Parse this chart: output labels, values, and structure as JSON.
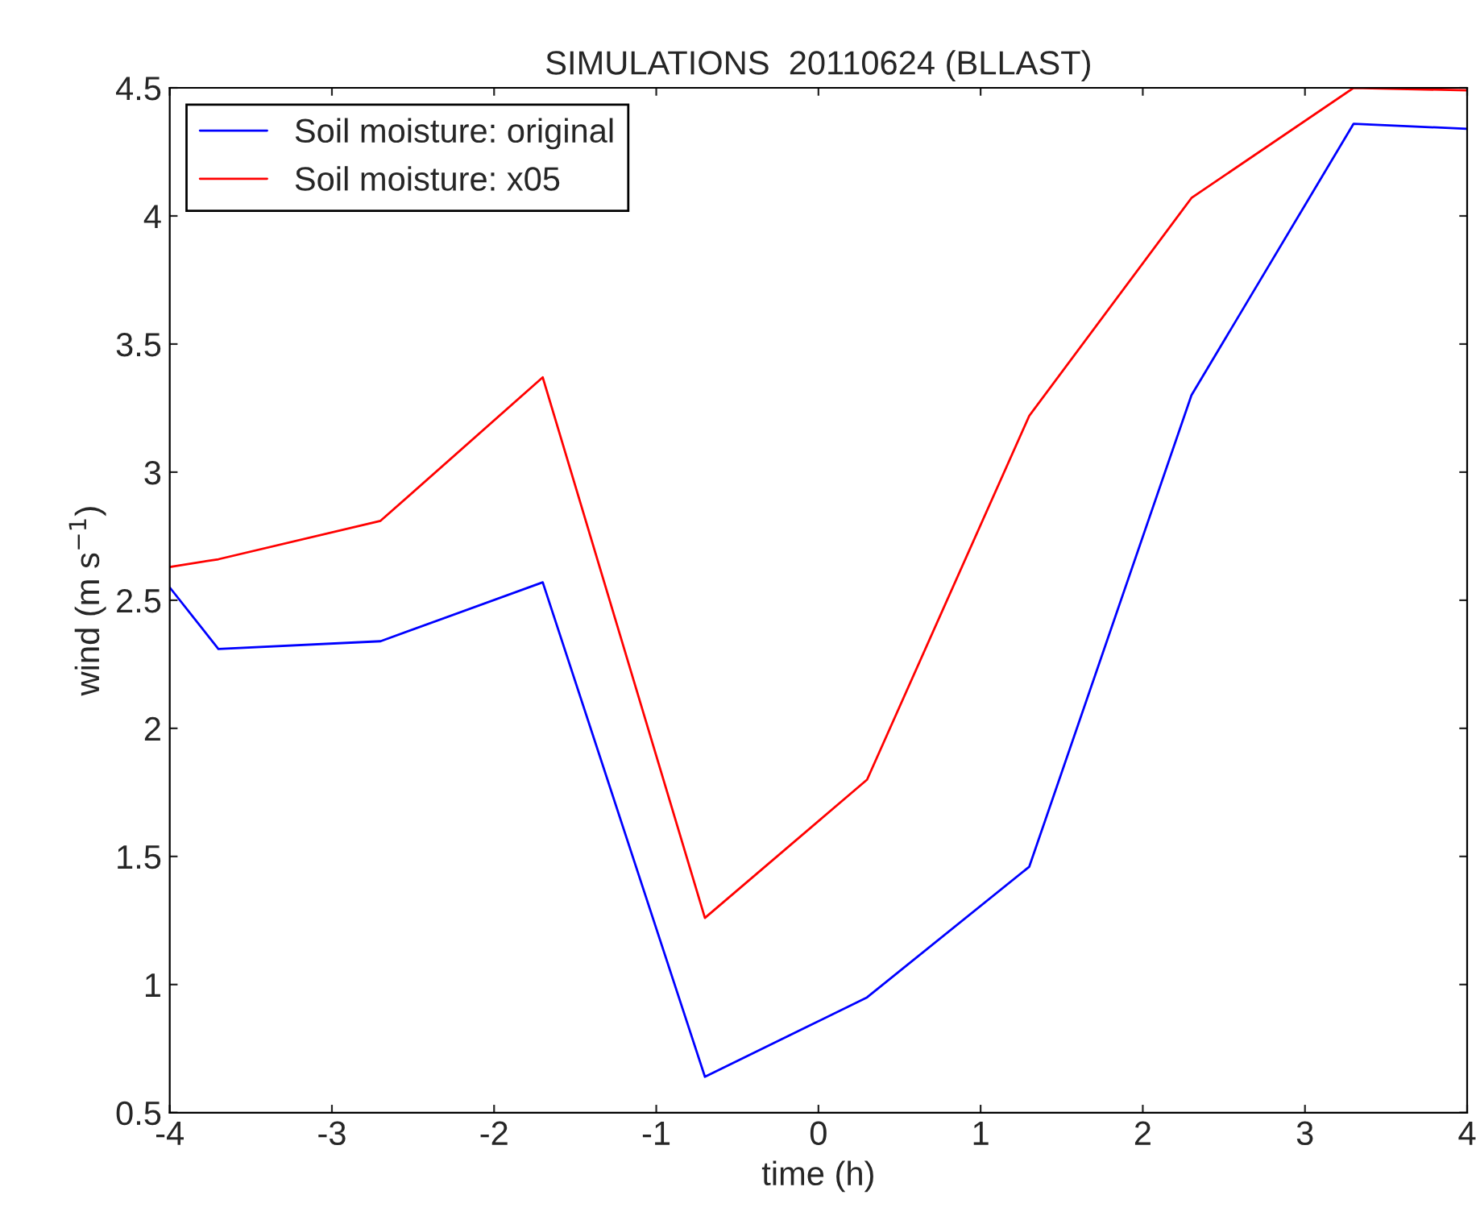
{
  "chart_data": {
    "type": "line",
    "title": "SIMULATIONS  20110624 (BLLAST)",
    "xlabel": "time (h)",
    "ylabel": "wind (m s$^{−1}$)",
    "x": [
      -4,
      -3.7,
      -2.7,
      -1.7,
      -0.7,
      0.3,
      1.3,
      2.3,
      3.3,
      4
    ],
    "series": [
      {
        "name": "Soil moisture: original",
        "color": "#0000ff",
        "values": [
          2.55,
          2.31,
          2.34,
          2.57,
          0.64,
          0.95,
          1.46,
          3.3,
          4.36,
          4.34
        ]
      },
      {
        "name": "Soil moisture: x05",
        "color": "#ff0000",
        "values": [
          2.63,
          2.66,
          2.81,
          3.37,
          1.26,
          1.8,
          3.22,
          4.07,
          4.5,
          4.49
        ]
      }
    ],
    "xlim": [
      -4,
      4
    ],
    "xticks": [
      -4,
      -3,
      -2,
      -1,
      0,
      1,
      2,
      3,
      4
    ],
    "ylim": [
      0.5,
      4.5
    ],
    "yticks": [
      0.5,
      1,
      1.5,
      2,
      2.5,
      3,
      3.5,
      4,
      4.5
    ],
    "grid": false,
    "legend": "top left",
    "line_style": "solid"
  }
}
